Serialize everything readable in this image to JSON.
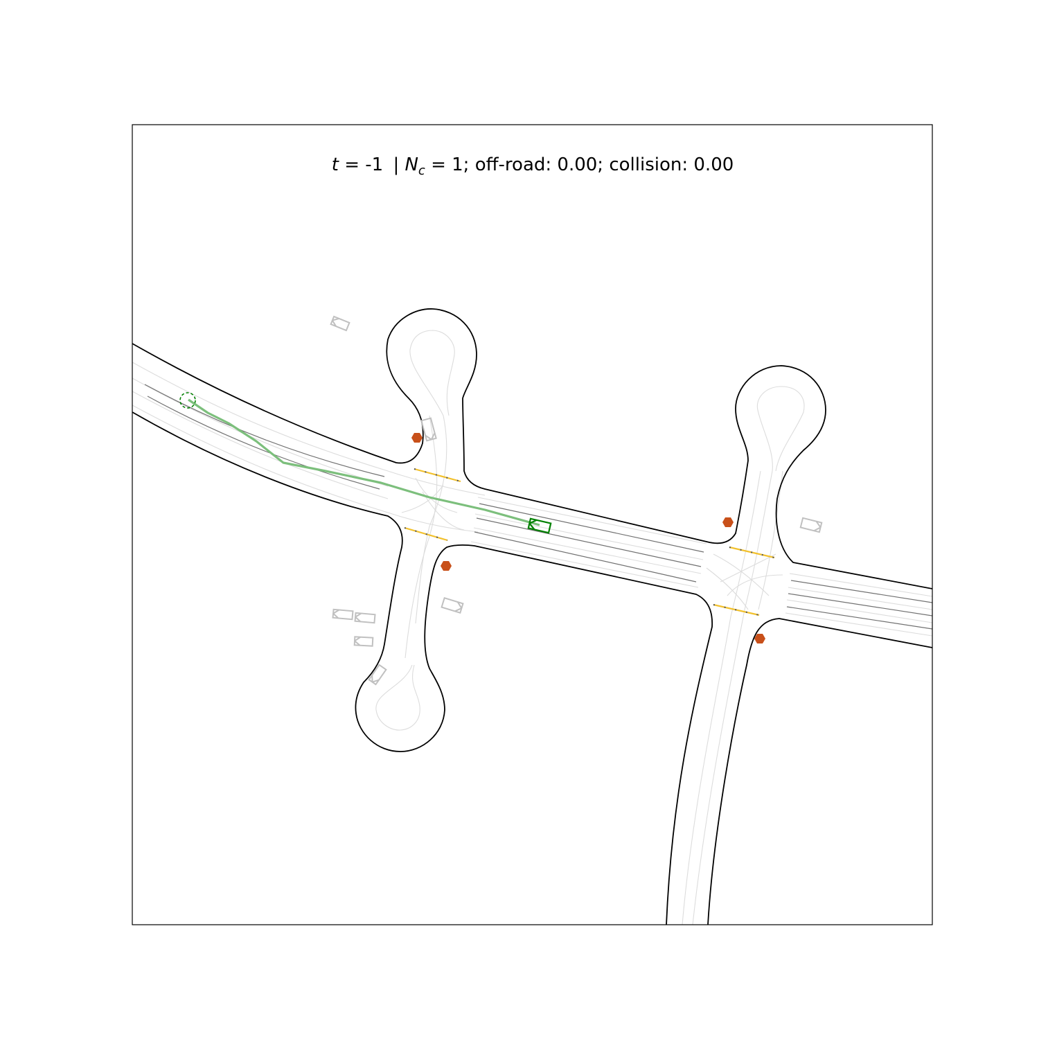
{
  "title": {
    "t_symbol": "t",
    "t_value": "= -1",
    "separator": "|",
    "nc_symbol": "N",
    "nc_subscript": "c",
    "nc_value": "= 1;",
    "offroad": "off-road: 0.00;",
    "collision": "collision: 0.00"
  },
  "colors": {
    "road_edge": "#000000",
    "lane_center": "#d8d8d8",
    "lane_divider": "#707070",
    "ego": "#008000",
    "ego_trajectory": "#7cbf7c",
    "other_vehicle": "#c0c0c0",
    "stop_sign": "#c8501a",
    "crosswalk": "#f2c12e"
  },
  "legend": {
    "ego_vehicle": "ego-vehicle",
    "goal": "goal-marker"
  }
}
